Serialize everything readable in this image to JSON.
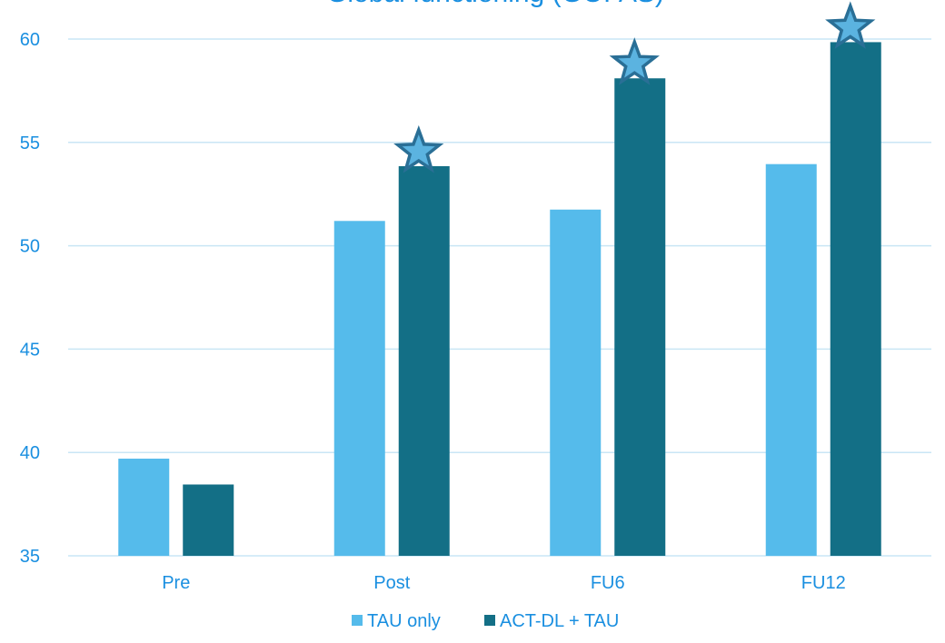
{
  "chart_data": {
    "type": "bar",
    "title": "Global functioning (GOFAS)",
    "xlabel": "",
    "ylabel": "",
    "categories": [
      "Pre",
      "Post",
      "FU6",
      "FU12"
    ],
    "series": [
      {
        "name": "TAU only",
        "color": "#55BBEB",
        "values": [
          39.7,
          51.2,
          51.75,
          53.95
        ]
      },
      {
        "name": "ACT-DL + TAU",
        "color": "#136F86",
        "values": [
          38.45,
          53.85,
          58.1,
          59.85
        ]
      }
    ],
    "ylim": [
      35,
      60
    ],
    "yticks": [
      35,
      40,
      45,
      50,
      55,
      60
    ],
    "grid": true,
    "legend_position": "bottom",
    "significance_markers": {
      "shape": "star",
      "series": "ACT-DL + TAU",
      "categories": [
        "Post",
        "FU6",
        "FU12"
      ]
    },
    "colors": {
      "text": "#1A8FE0",
      "grid": "#C9E6F5",
      "star_fill": "#5BB3E0",
      "star_stroke": "#2A6F96"
    }
  }
}
